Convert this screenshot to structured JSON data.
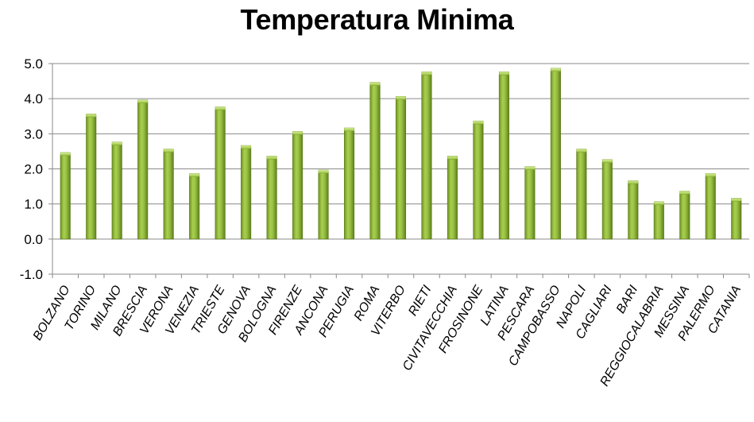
{
  "chart_data": {
    "type": "bar",
    "title": "Temperatura Minima",
    "xlabel": "",
    "ylabel": "",
    "ylim": [
      -1.0,
      5.0
    ],
    "ytick_step": 1.0,
    "yticks": [
      "5.0",
      "4.0",
      "3.0",
      "2.0",
      "1.0",
      "0.0",
      "-1.0"
    ],
    "grid": true,
    "legend": "none",
    "bar_color": "#8db43a",
    "categories": [
      "BOLZANO",
      "TORINO",
      "MILANO",
      "BRESCIA",
      "VERONA",
      "VENEZIA",
      "TRIESTE",
      "GENOVA",
      "BOLOGNA",
      "FIRENZE",
      "ANCONA",
      "PERUGIA",
      "ROMA",
      "VITERBO",
      "RIETI",
      "CIVITAVECCHIA",
      "FROSINONE",
      "LATINA",
      "PESCARA",
      "CAMPOBASSO",
      "NAPOLI",
      "CAGLIARI",
      "BARI",
      "REGGIOCALABRIA",
      "MESSINA",
      "PALERMO",
      "CATANIA"
    ],
    "values": [
      2.4,
      3.5,
      2.7,
      3.9,
      2.5,
      1.8,
      3.7,
      2.6,
      2.3,
      3.0,
      1.9,
      3.1,
      4.4,
      4.0,
      4.7,
      2.3,
      3.3,
      4.7,
      2.0,
      4.8,
      2.5,
      2.2,
      1.6,
      1.0,
      1.3,
      1.8,
      1.1
    ]
  }
}
